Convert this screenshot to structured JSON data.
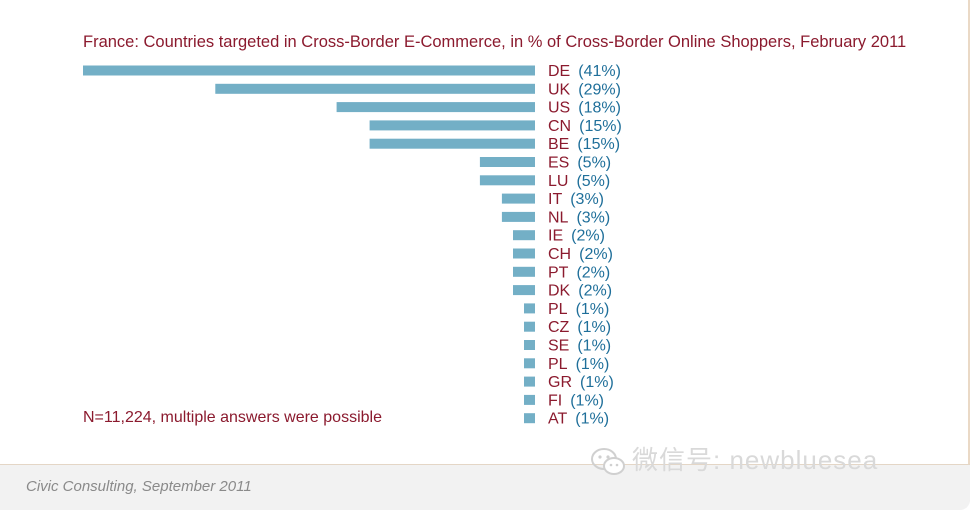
{
  "title": "France: Countries targeted in Cross-Border E-Commerce, in % of Cross-Border Online Shoppers, February 2011",
  "note": "N=11,224, multiple answers were possible",
  "source": "Civic Consulting, September 2011",
  "watermark": "微信号: newbluesea",
  "colors": {
    "bar": "#73afc6",
    "country": "#8b1a2e",
    "percent": "#1f6f9a",
    "title": "#8b1a2e"
  },
  "chart_data": {
    "type": "bar",
    "orientation": "horizontal",
    "title": "France: Countries targeted in Cross-Border E-Commerce, in % of Cross-Border Online Shoppers, February 2011",
    "unit": "%",
    "xlim": [
      0,
      41
    ],
    "categories": [
      "DE",
      "UK",
      "US",
      "CN",
      "BE",
      "ES",
      "LU",
      "IT",
      "NL",
      "IE",
      "CH",
      "PT",
      "DK",
      "PL",
      "CZ",
      "SE",
      "PL",
      "GR",
      "FI",
      "AT"
    ],
    "values": [
      41,
      29,
      18,
      15,
      15,
      5,
      5,
      3,
      3,
      2,
      2,
      2,
      2,
      1,
      1,
      1,
      1,
      1,
      1,
      1
    ],
    "value_labels": [
      "(41%)",
      "(29%)",
      "(18%)",
      "(15%)",
      "(15%)",
      "(5%)",
      "(5%)",
      "(3%)",
      "(3%)",
      "(2%)",
      "(2%)",
      "(2%)",
      "(2%)",
      "(1%)",
      "(1%)",
      "(1%)",
      "(1%)",
      "(1%)",
      "(1%)",
      "(1%)"
    ]
  }
}
